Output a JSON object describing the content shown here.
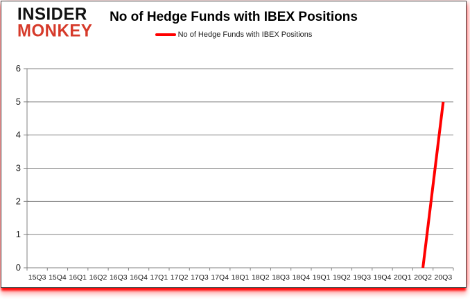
{
  "logo": {
    "line1": "INSIDER",
    "line2": "MONKEY",
    "line1_color": "#111111",
    "line2_color": "#d63a2a"
  },
  "header": {
    "title": "No of Hedge Funds with IBEX Positions"
  },
  "legend": {
    "label": "No of Hedge Funds with IBEX Positions",
    "line_color": "#ff0000"
  },
  "chart_data": {
    "type": "line",
    "title": "No of Hedge Funds with IBEX Positions",
    "categories": [
      "15Q3",
      "15Q4",
      "16Q1",
      "16Q2",
      "16Q3",
      "16Q4",
      "17Q1",
      "17Q2",
      "17Q3",
      "17Q4",
      "18Q1",
      "18Q2",
      "18Q3",
      "18Q4",
      "19Q1",
      "19Q2",
      "19Q3",
      "19Q4",
      "20Q1",
      "20Q2",
      "20Q3"
    ],
    "series": [
      {
        "name": "No of Hedge Funds with IBEX Positions",
        "color": "#ff0000",
        "values": [
          null,
          null,
          null,
          null,
          null,
          null,
          null,
          null,
          null,
          null,
          null,
          null,
          null,
          null,
          null,
          null,
          null,
          null,
          null,
          0,
          5
        ]
      }
    ],
    "xlabel": "",
    "ylabel": "",
    "ylim": [
      0,
      6
    ],
    "ytick_interval": 1,
    "grid": true,
    "gridline_color": "#808080",
    "axis_color": "#808080",
    "tick_label_color": "#1a1a1a",
    "legend_position": "top"
  }
}
